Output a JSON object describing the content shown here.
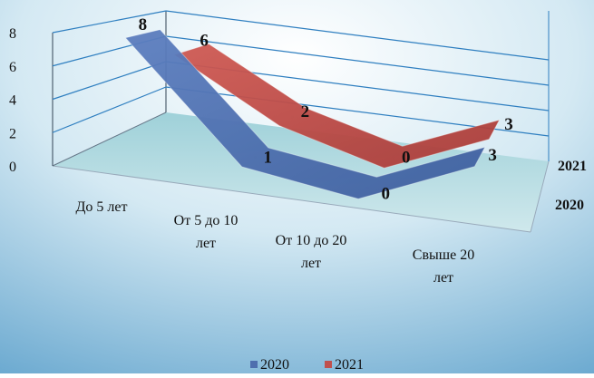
{
  "chart_data": {
    "type": "line",
    "style": "3d-ribbon",
    "categories": [
      "До 5 лет",
      "От 5 до 10 лет",
      "От 10 до 20 лет",
      "Свыше 20 лет"
    ],
    "category_lines": [
      [
        "До 5 лет"
      ],
      [
        "От 5 до 10",
        "лет"
      ],
      [
        "От 10 до 20",
        "лет"
      ],
      [
        "Свыше 20",
        "лет"
      ]
    ],
    "series": [
      {
        "name": "2020",
        "values": [
          8,
          1,
          0,
          3
        ],
        "color": "#4f6fae"
      },
      {
        "name": "2021",
        "values": [
          6,
          2,
          0,
          3
        ],
        "color": "#c0504d"
      }
    ],
    "ylim": [
      0,
      8
    ],
    "yticks": [
      0,
      2,
      4,
      6,
      8
    ],
    "depth_labels": [
      "2021",
      "2020"
    ],
    "grid": true,
    "legend": "bottom",
    "colors": {
      "background_top": "#ffffff",
      "background_bottom": "#5fa2cc",
      "gridline": "#2f7fc0",
      "floor": "#9fcfdb"
    }
  }
}
